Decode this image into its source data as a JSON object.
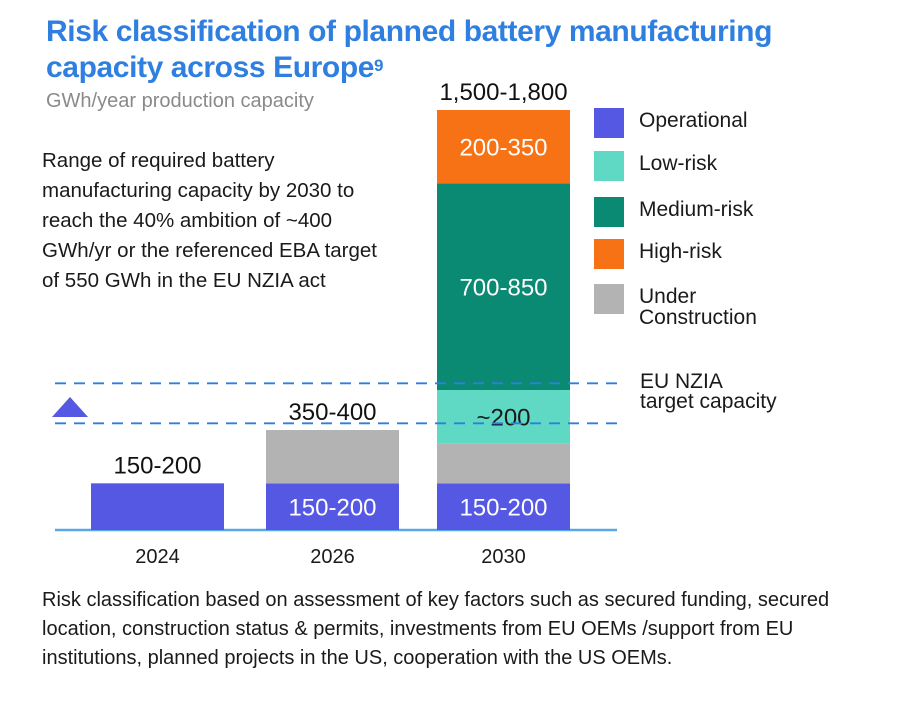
{
  "title": "Risk classification of planned battery manufacturing capacity across Europe",
  "title_superscript": "9",
  "subtitle": "GWh/year production capacity",
  "note": "Range of required battery manufacturing capacity by 2030 to reach the 40% ambition of ~400 GWh/yr or the referenced EBA target of 550 GWh in the EU NZIA act",
  "footnote": "Risk classification based on assessment of key factors such as  secured funding, secured location, construction status & permits, investments from EU OEMs /support from EU institutions, planned projects in the US, cooperation with the US OEMs.",
  "nzia_label": "EU NZIA target capacity",
  "legend": [
    {
      "label": "Operational",
      "color": "#5558e3"
    },
    {
      "label": "Low-risk",
      "color": "#5fd8c4"
    },
    {
      "label": "Medium-risk",
      "color": "#0b8a73"
    },
    {
      "label": "High-risk",
      "color": "#f77214"
    },
    {
      "label": "Under Construction",
      "color": "#b3b3b3"
    }
  ],
  "chart_data": {
    "type": "bar",
    "stacked": true,
    "categories": [
      "2024",
      "2026",
      "2030"
    ],
    "totals": [
      "150-200",
      "350-400",
      "1,500-1,800"
    ],
    "series": [
      {
        "name": "Operational",
        "color": "#5558e3",
        "values": [
          175,
          175,
          175
        ],
        "labels": [
          "",
          "150-200",
          "150-200"
        ]
      },
      {
        "name": "Under Construction",
        "color": "#b3b3b3",
        "values": [
          0,
          200,
          150
        ],
        "labels": [
          "",
          "",
          ""
        ]
      },
      {
        "name": "Low-risk",
        "color": "#5fd8c4",
        "values": [
          0,
          0,
          200
        ],
        "labels": [
          "",
          "",
          "~200"
        ]
      },
      {
        "name": "Medium-risk",
        "color": "#0b8a73",
        "values": [
          0,
          0,
          775
        ],
        "labels": [
          "",
          "",
          "700-850"
        ]
      },
      {
        "name": "High-risk",
        "color": "#f77214",
        "values": [
          0,
          0,
          275
        ],
        "labels": [
          "",
          "",
          "200-350"
        ]
      }
    ],
    "reference_band": {
      "name": "EU NZIA target capacity",
      "range": [
        400,
        550
      ],
      "color": "#2f7fe0"
    },
    "ylim": [
      0,
      1575
    ],
    "grid": false,
    "legend_position": "right"
  }
}
